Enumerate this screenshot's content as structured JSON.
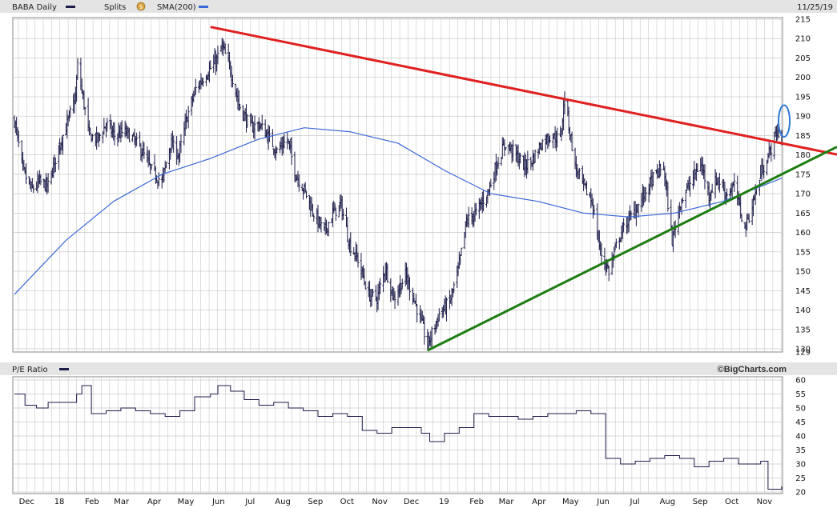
{
  "header": {
    "symbol_label": "BABA Daily",
    "splits_label": "Splits",
    "splits_icon": "dollar-coin-icon",
    "sma_label": "SMA(200)",
    "date_label": "11/25/19"
  },
  "lower_panel": {
    "title": "P/E Ratio",
    "credit": "©BigCharts.com"
  },
  "colors": {
    "price_bar": "#1c1c4a",
    "sma": "#3a68d8",
    "resistance": "#e02020",
    "support": "#1d7d12",
    "highlight": "#2e78d2",
    "grid": "#c8c8c8",
    "header_bg": "#e4e4e4",
    "pe_line": "#1c1c4a"
  },
  "chart_data": [
    {
      "type": "ohlc",
      "title": "BABA Daily",
      "y_axis_ticks": [
        "215",
        "210",
        "205",
        "200",
        "195",
        "190",
        "185",
        "180",
        "175",
        "170",
        "165",
        "160",
        "155",
        "150",
        "145",
        "140",
        "135",
        "130",
        "129"
      ],
      "ylim": [
        129,
        215
      ],
      "x_ticks": [
        "Dec",
        "18",
        "Feb",
        "Mar",
        "Apr",
        "May",
        "Jun",
        "Jul",
        "Aug",
        "Sep",
        "Oct",
        "Nov",
        "Dec",
        "19",
        "Feb",
        "Mar",
        "Apr",
        "May",
        "Jun",
        "Jul",
        "Aug",
        "Sep",
        "Oct",
        "Nov"
      ],
      "series": [
        {
          "name": "BABA",
          "description": "approximate daily closes",
          "x": [
            "2017-11-27",
            "2017-12-05",
            "2017-12-13",
            "2017-12-21",
            "2017-12-29",
            "2018-01-08",
            "2018-01-16",
            "2018-01-24",
            "2018-01-26",
            "2018-02-06",
            "2018-02-14",
            "2018-02-22",
            "2018-03-02",
            "2018-03-12",
            "2018-03-20",
            "2018-03-28",
            "2018-04-06",
            "2018-04-16",
            "2018-04-24",
            "2018-05-02",
            "2018-05-10",
            "2018-05-18",
            "2018-05-28",
            "2018-06-06",
            "2018-06-12",
            "2018-06-20",
            "2018-06-28",
            "2018-07-09",
            "2018-07-17",
            "2018-07-25",
            "2018-08-03",
            "2018-08-13",
            "2018-08-21",
            "2018-08-29",
            "2018-09-07",
            "2018-09-17",
            "2018-09-25",
            "2018-10-03",
            "2018-10-11",
            "2018-10-19",
            "2018-10-29",
            "2018-11-06",
            "2018-11-14",
            "2018-11-22",
            "2018-12-03",
            "2018-12-11",
            "2018-12-19",
            "2018-12-24",
            "2019-01-04",
            "2019-01-14",
            "2019-01-22",
            "2019-01-30",
            "2019-02-08",
            "2019-02-20",
            "2019-02-28",
            "2019-03-08",
            "2019-03-18",
            "2019-03-26",
            "2019-04-03",
            "2019-04-11",
            "2019-04-19",
            "2019-04-29",
            "2019-05-03",
            "2019-05-13",
            "2019-05-21",
            "2019-05-29",
            "2019-06-06",
            "2019-06-14",
            "2019-06-24",
            "2019-07-02",
            "2019-07-10",
            "2019-07-18",
            "2019-07-26",
            "2019-08-05",
            "2019-08-13",
            "2019-08-21",
            "2019-08-29",
            "2019-09-09",
            "2019-09-17",
            "2019-09-25",
            "2019-10-03",
            "2019-10-11",
            "2019-10-21",
            "2019-10-29",
            "2019-11-06",
            "2019-11-14",
            "2019-11-20",
            "2019-11-25"
          ],
          "values": [
            189,
            176,
            171,
            173,
            172,
            182,
            188,
            195,
            203,
            185,
            184,
            188,
            185,
            186,
            184,
            181,
            176,
            173,
            183,
            180,
            190,
            197,
            201,
            204,
            208,
            202,
            193,
            187,
            188,
            185,
            181,
            184,
            175,
            171,
            165,
            160,
            165,
            167,
            157,
            153,
            144,
            143,
            151,
            143,
            149,
            143,
            136,
            131,
            139,
            142,
            150,
            163,
            165,
            171,
            178,
            183,
            180,
            177,
            179,
            183,
            185,
            184,
            195,
            177,
            172,
            168,
            155,
            150,
            159,
            163,
            166,
            170,
            174,
            177,
            158,
            168,
            172,
            178,
            170,
            174,
            170,
            172,
            161,
            168,
            176,
            181,
            186,
            185
          ]
        },
        {
          "name": "SMA(200)",
          "x": [
            "2017-11-27",
            "2018-01-15",
            "2018-03-01",
            "2018-04-16",
            "2018-05-31",
            "2018-07-16",
            "2018-08-29",
            "2018-10-11",
            "2018-11-26",
            "2019-01-09",
            "2019-02-22",
            "2019-04-08",
            "2019-05-21",
            "2019-07-03",
            "2019-08-15",
            "2019-09-30",
            "2019-11-25"
          ],
          "values": [
            144,
            158,
            168,
            175,
            179,
            184,
            187,
            186,
            183,
            176,
            170,
            168,
            165,
            164,
            165,
            168,
            174
          ]
        }
      ],
      "annotations": [
        {
          "name": "resistance-trendline",
          "x": [
            "2018-06-01",
            "2019-11-25"
          ],
          "values": [
            213,
            183
          ]
        },
        {
          "name": "support-trendline",
          "x": [
            "2018-12-24",
            "2019-11-25"
          ],
          "values": [
            129.5,
            175
          ]
        },
        {
          "name": "breakout-highlight",
          "x": "2019-11-25",
          "values": [
            185.5,
            192
          ]
        }
      ]
    },
    {
      "type": "line",
      "title": "P/E Ratio",
      "y_axis_ticks": [
        "60",
        "55",
        "50",
        "45",
        "40",
        "35",
        "30",
        "25",
        "20"
      ],
      "ylim": [
        20,
        60
      ],
      "x_ticks": [
        "Dec",
        "18",
        "Feb",
        "Mar",
        "Apr",
        "May",
        "Jun",
        "Jul",
        "Aug",
        "Sep",
        "Oct",
        "Nov",
        "Dec",
        "19",
        "Feb",
        "Mar",
        "Apr",
        "May",
        "Jun",
        "Jul",
        "Aug",
        "Sep",
        "Oct",
        "Nov"
      ],
      "series": [
        {
          "name": "P/E Ratio",
          "x": [
            "2017-11-27",
            "2017-12-07",
            "2017-12-18",
            "2017-12-29",
            "2018-01-12",
            "2018-01-25",
            "2018-01-30",
            "2018-02-08",
            "2018-02-22",
            "2018-03-08",
            "2018-03-22",
            "2018-04-05",
            "2018-04-19",
            "2018-05-03",
            "2018-05-17",
            "2018-06-01",
            "2018-06-08",
            "2018-06-20",
            "2018-07-03",
            "2018-07-17",
            "2018-07-31",
            "2018-08-14",
            "2018-08-28",
            "2018-09-11",
            "2018-09-25",
            "2018-10-09",
            "2018-10-23",
            "2018-11-06",
            "2018-11-20",
            "2018-12-04",
            "2018-12-18",
            "2018-12-26",
            "2019-01-09",
            "2019-01-23",
            "2019-02-06",
            "2019-02-20",
            "2019-03-06",
            "2019-03-20",
            "2019-04-03",
            "2019-04-17",
            "2019-05-01",
            "2019-05-14",
            "2019-05-28",
            "2019-06-11",
            "2019-06-25",
            "2019-07-09",
            "2019-07-23",
            "2019-08-06",
            "2019-08-20",
            "2019-09-03",
            "2019-09-17",
            "2019-10-01",
            "2019-10-15",
            "2019-10-29",
            "2019-11-05",
            "2019-11-12",
            "2019-11-25"
          ],
          "values": [
            55,
            51,
            50,
            52,
            52,
            55,
            58,
            48,
            49,
            50,
            49,
            48,
            47,
            49,
            54,
            55,
            58,
            56,
            53,
            51,
            52,
            50,
            49,
            47,
            48,
            47,
            42,
            41,
            43,
            43,
            41,
            38,
            41,
            43,
            48,
            47,
            47,
            46,
            47,
            48,
            48,
            49,
            48,
            32,
            30,
            31,
            32,
            33,
            32,
            29,
            31,
            32,
            30,
            30,
            31,
            21,
            22
          ]
        }
      ]
    }
  ]
}
